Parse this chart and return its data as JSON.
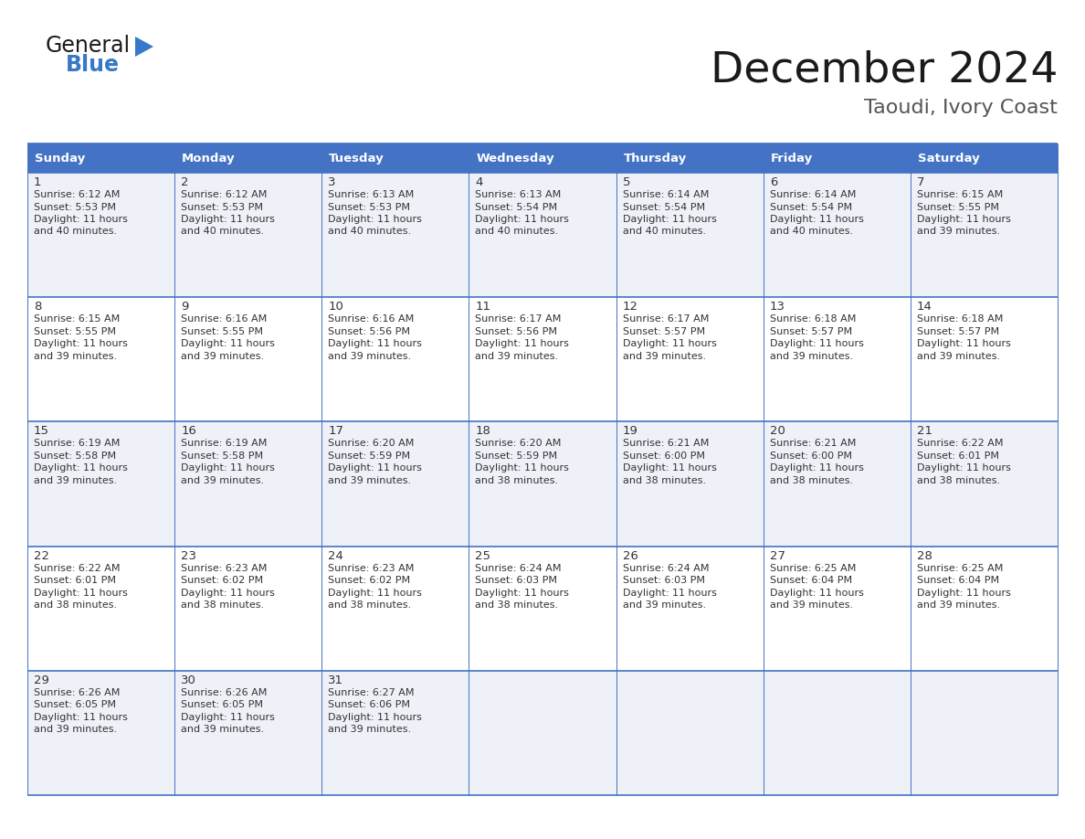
{
  "title": "December 2024",
  "subtitle": "Taoudi, Ivory Coast",
  "header_color": "#4472C4",
  "header_text_color": "#FFFFFF",
  "cell_bg_even": "#FFFFFF",
  "cell_bg_odd": "#EEF2F8",
  "border_color": "#4472C4",
  "text_color": "#333333",
  "day_headers": [
    "Sunday",
    "Monday",
    "Tuesday",
    "Wednesday",
    "Thursday",
    "Friday",
    "Saturday"
  ],
  "weeks": [
    [
      {
        "day": "1",
        "sunrise": "6:12 AM",
        "sunset": "5:53 PM",
        "daylight": "11 hours",
        "daylight2": "and 40 minutes."
      },
      {
        "day": "2",
        "sunrise": "6:12 AM",
        "sunset": "5:53 PM",
        "daylight": "11 hours",
        "daylight2": "and 40 minutes."
      },
      {
        "day": "3",
        "sunrise": "6:13 AM",
        "sunset": "5:53 PM",
        "daylight": "11 hours",
        "daylight2": "and 40 minutes."
      },
      {
        "day": "4",
        "sunrise": "6:13 AM",
        "sunset": "5:54 PM",
        "daylight": "11 hours",
        "daylight2": "and 40 minutes."
      },
      {
        "day": "5",
        "sunrise": "6:14 AM",
        "sunset": "5:54 PM",
        "daylight": "11 hours",
        "daylight2": "and 40 minutes."
      },
      {
        "day": "6",
        "sunrise": "6:14 AM",
        "sunset": "5:54 PM",
        "daylight": "11 hours",
        "daylight2": "and 40 minutes."
      },
      {
        "day": "7",
        "sunrise": "6:15 AM",
        "sunset": "5:55 PM",
        "daylight": "11 hours",
        "daylight2": "and 39 minutes."
      }
    ],
    [
      {
        "day": "8",
        "sunrise": "6:15 AM",
        "sunset": "5:55 PM",
        "daylight": "11 hours",
        "daylight2": "and 39 minutes."
      },
      {
        "day": "9",
        "sunrise": "6:16 AM",
        "sunset": "5:55 PM",
        "daylight": "11 hours",
        "daylight2": "and 39 minutes."
      },
      {
        "day": "10",
        "sunrise": "6:16 AM",
        "sunset": "5:56 PM",
        "daylight": "11 hours",
        "daylight2": "and 39 minutes."
      },
      {
        "day": "11",
        "sunrise": "6:17 AM",
        "sunset": "5:56 PM",
        "daylight": "11 hours",
        "daylight2": "and 39 minutes."
      },
      {
        "day": "12",
        "sunrise": "6:17 AM",
        "sunset": "5:57 PM",
        "daylight": "11 hours",
        "daylight2": "and 39 minutes."
      },
      {
        "day": "13",
        "sunrise": "6:18 AM",
        "sunset": "5:57 PM",
        "daylight": "11 hours",
        "daylight2": "and 39 minutes."
      },
      {
        "day": "14",
        "sunrise": "6:18 AM",
        "sunset": "5:57 PM",
        "daylight": "11 hours",
        "daylight2": "and 39 minutes."
      }
    ],
    [
      {
        "day": "15",
        "sunrise": "6:19 AM",
        "sunset": "5:58 PM",
        "daylight": "11 hours",
        "daylight2": "and 39 minutes."
      },
      {
        "day": "16",
        "sunrise": "6:19 AM",
        "sunset": "5:58 PM",
        "daylight": "11 hours",
        "daylight2": "and 39 minutes."
      },
      {
        "day": "17",
        "sunrise": "6:20 AM",
        "sunset": "5:59 PM",
        "daylight": "11 hours",
        "daylight2": "and 39 minutes."
      },
      {
        "day": "18",
        "sunrise": "6:20 AM",
        "sunset": "5:59 PM",
        "daylight": "11 hours",
        "daylight2": "and 38 minutes."
      },
      {
        "day": "19",
        "sunrise": "6:21 AM",
        "sunset": "6:00 PM",
        "daylight": "11 hours",
        "daylight2": "and 38 minutes."
      },
      {
        "day": "20",
        "sunrise": "6:21 AM",
        "sunset": "6:00 PM",
        "daylight": "11 hours",
        "daylight2": "and 38 minutes."
      },
      {
        "day": "21",
        "sunrise": "6:22 AM",
        "sunset": "6:01 PM",
        "daylight": "11 hours",
        "daylight2": "and 38 minutes."
      }
    ],
    [
      {
        "day": "22",
        "sunrise": "6:22 AM",
        "sunset": "6:01 PM",
        "daylight": "11 hours",
        "daylight2": "and 38 minutes."
      },
      {
        "day": "23",
        "sunrise": "6:23 AM",
        "sunset": "6:02 PM",
        "daylight": "11 hours",
        "daylight2": "and 38 minutes."
      },
      {
        "day": "24",
        "sunrise": "6:23 AM",
        "sunset": "6:02 PM",
        "daylight": "11 hours",
        "daylight2": "and 38 minutes."
      },
      {
        "day": "25",
        "sunrise": "6:24 AM",
        "sunset": "6:03 PM",
        "daylight": "11 hours",
        "daylight2": "and 38 minutes."
      },
      {
        "day": "26",
        "sunrise": "6:24 AM",
        "sunset": "6:03 PM",
        "daylight": "11 hours",
        "daylight2": "and 39 minutes."
      },
      {
        "day": "27",
        "sunrise": "6:25 AM",
        "sunset": "6:04 PM",
        "daylight": "11 hours",
        "daylight2": "and 39 minutes."
      },
      {
        "day": "28",
        "sunrise": "6:25 AM",
        "sunset": "6:04 PM",
        "daylight": "11 hours",
        "daylight2": "and 39 minutes."
      }
    ],
    [
      {
        "day": "29",
        "sunrise": "6:26 AM",
        "sunset": "6:05 PM",
        "daylight": "11 hours",
        "daylight2": "and 39 minutes."
      },
      {
        "day": "30",
        "sunrise": "6:26 AM",
        "sunset": "6:05 PM",
        "daylight": "11 hours",
        "daylight2": "and 39 minutes."
      },
      {
        "day": "31",
        "sunrise": "6:27 AM",
        "sunset": "6:06 PM",
        "daylight": "11 hours",
        "daylight2": "and 39 minutes."
      },
      null,
      null,
      null,
      null
    ]
  ],
  "logo_general_color": "#1a1a1a",
  "logo_blue_color": "#3878C8",
  "logo_triangle_color": "#3878C8",
  "title_color": "#1a1a1a",
  "subtitle_color": "#555555"
}
